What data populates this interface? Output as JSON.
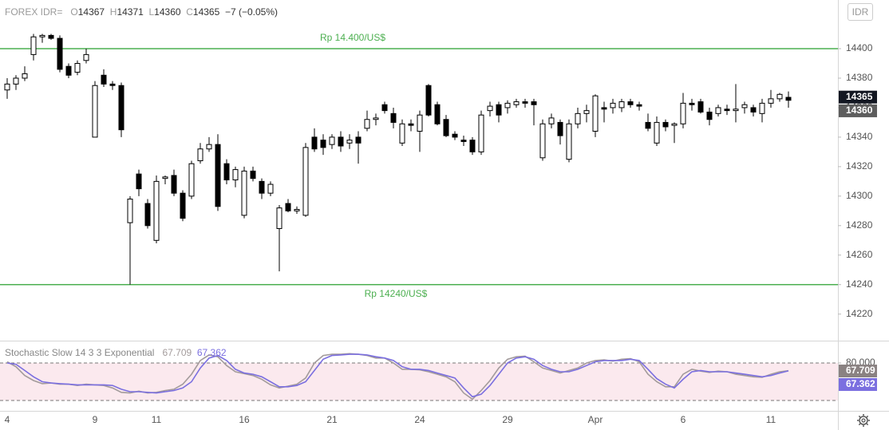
{
  "toolbar": {
    "currency": "IDR"
  },
  "chart_data": [
    {
      "type": "candlestick",
      "title": "FOREX IDR=",
      "ohlc_legend": [
        "O",
        "H",
        "L",
        "C"
      ],
      "change_label": "−7 (−0.05%)",
      "color": "#000000",
      "categories": [
        "4",
        null,
        null,
        null,
        null,
        null,
        null,
        null,
        null,
        null,
        "9",
        null,
        null,
        null,
        null,
        null,
        null,
        "11",
        null,
        null,
        null,
        null,
        null,
        null,
        null,
        null,
        null,
        "16",
        null,
        null,
        null,
        null,
        null,
        null,
        null,
        null,
        null,
        "21",
        null,
        null,
        null,
        null,
        null,
        null,
        null,
        null,
        null,
        "24",
        null,
        null,
        null,
        null,
        null,
        null,
        null,
        null,
        null,
        "29",
        null,
        null,
        null,
        null,
        null,
        null,
        null,
        null,
        null,
        "Apr",
        null,
        null,
        null,
        null,
        null,
        null,
        null,
        null,
        null,
        "6",
        null,
        null,
        null,
        null,
        null,
        null,
        null,
        null,
        null,
        "11",
        null,
        null
      ],
      "ohlc": [
        [
          14372,
          14380,
          14366,
          14376
        ],
        [
          14376,
          14382,
          14372,
          14380
        ],
        [
          14380,
          14388,
          14378,
          14383
        ],
        [
          14396,
          14410,
          14392,
          14408
        ],
        [
          14408,
          14410,
          14404,
          14409
        ],
        [
          14409,
          14410,
          14406,
          14407
        ],
        [
          14407,
          14409,
          14384,
          14386
        ],
        [
          14388,
          14390,
          14380,
          14382
        ],
        [
          14384,
          14392,
          14382,
          14390
        ],
        [
          14392,
          14400,
          14390,
          14396
        ],
        [
          14340,
          14378,
          14340,
          14375
        ],
        [
          14382,
          14386,
          14374,
          14376
        ],
        [
          14376,
          14378,
          14372,
          14375
        ],
        [
          14375,
          14377,
          14340,
          14345
        ],
        [
          14282,
          14300,
          14240,
          14298
        ],
        [
          14315,
          14318,
          14300,
          14305
        ],
        [
          14295,
          14298,
          14278,
          14280
        ],
        [
          14270,
          14314,
          14268,
          14310
        ],
        [
          14312,
          14314,
          14308,
          14313
        ],
        [
          14314,
          14318,
          14300,
          14302
        ],
        [
          14302,
          14304,
          14283,
          14285
        ],
        [
          14300,
          14324,
          14298,
          14322
        ],
        [
          14324,
          14336,
          14322,
          14332
        ],
        [
          14332,
          14340,
          14330,
          14335
        ],
        [
          14335,
          14342,
          14290,
          14293
        ],
        [
          14322,
          14325,
          14308,
          14311
        ],
        [
          14311,
          14320,
          14306,
          14318
        ],
        [
          14287,
          14320,
          14285,
          14317
        ],
        [
          14317,
          14320,
          14310,
          14312
        ],
        [
          14310,
          14312,
          14298,
          14302
        ],
        [
          14302,
          14310,
          14300,
          14308
        ],
        [
          14278,
          14294,
          14249,
          14292
        ],
        [
          14295,
          14298,
          14289,
          14290
        ],
        [
          14290,
          14293,
          14288,
          14291
        ],
        [
          14287,
          14336,
          14286,
          14333
        ],
        [
          14340,
          14346,
          14330,
          14332
        ],
        [
          14338,
          14342,
          14328,
          14333
        ],
        [
          14335,
          14342,
          14332,
          14340
        ],
        [
          14340,
          14344,
          14330,
          14334
        ],
        [
          14336,
          14342,
          14332,
          14338
        ],
        [
          14340,
          14344,
          14322,
          14336
        ],
        [
          14346,
          14358,
          14344,
          14352
        ],
        [
          14352,
          14356,
          14348,
          14353
        ],
        [
          14362,
          14364,
          14356,
          14358
        ],
        [
          14356,
          14360,
          14346,
          14350
        ],
        [
          14336,
          14352,
          14334,
          14349
        ],
        [
          14349,
          14352,
          14344,
          14348
        ],
        [
          14344,
          14358,
          14330,
          14355
        ],
        [
          14375,
          14376,
          14354,
          14355
        ],
        [
          14362,
          14364,
          14348,
          14349
        ],
        [
          14352,
          14355,
          14340,
          14341
        ],
        [
          14342,
          14344,
          14338,
          14340
        ],
        [
          14338,
          14341,
          14334,
          14337
        ],
        [
          14338,
          14340,
          14328,
          14330
        ],
        [
          14330,
          14358,
          14328,
          14355
        ],
        [
          14358,
          14364,
          14354,
          14361
        ],
        [
          14362,
          14364,
          14350,
          14355
        ],
        [
          14360,
          14365,
          14356,
          14363
        ],
        [
          14362,
          14366,
          14360,
          14364
        ],
        [
          14364,
          14366,
          14360,
          14363
        ],
        [
          14364,
          14366,
          14348,
          14362
        ],
        [
          14326,
          14352,
          14324,
          14349
        ],
        [
          14349,
          14356,
          14346,
          14353
        ],
        [
          14350,
          14352,
          14335,
          14341
        ],
        [
          14325,
          14352,
          14323,
          14349
        ],
        [
          14349,
          14360,
          14346,
          14356
        ],
        [
          14356,
          14362,
          14350,
          14358
        ],
        [
          14344,
          14369,
          14340,
          14368
        ],
        [
          14360,
          14364,
          14350,
          14359
        ],
        [
          14360,
          14366,
          14356,
          14363
        ],
        [
          14360,
          14366,
          14357,
          14364
        ],
        [
          14364,
          14366,
          14360,
          14362
        ],
        [
          14362,
          14364,
          14358,
          14361
        ],
        [
          14350,
          14356,
          14344,
          14346
        ],
        [
          14336,
          14354,
          14334,
          14350
        ],
        [
          14350,
          14352,
          14344,
          14347
        ],
        [
          14348,
          14350,
          14336,
          14349
        ],
        [
          14349,
          14370,
          14346,
          14363
        ],
        [
          14363,
          14366,
          14358,
          14362
        ],
        [
          14364,
          14366,
          14356,
          14357
        ],
        [
          14357,
          14360,
          14348,
          14352
        ],
        [
          14356,
          14362,
          14354,
          14360
        ],
        [
          14359,
          14362,
          14355,
          14358
        ],
        [
          14358,
          14376,
          14350,
          14359
        ],
        [
          14360,
          14364,
          14356,
          14362
        ],
        [
          14360,
          14362,
          14354,
          14357
        ],
        [
          14356,
          14366,
          14350,
          14363
        ],
        [
          14363,
          14372,
          14360,
          14366
        ],
        [
          14366,
          14370,
          14364,
          14369
        ],
        [
          14367,
          14371,
          14360,
          14365
        ]
      ],
      "ylim": [
        14202,
        14433
      ],
      "yticks": [
        14220,
        14240,
        14260,
        14280,
        14300,
        14320,
        14340,
        14360,
        14380,
        14400
      ],
      "hlines": [
        {
          "value": 14400,
          "label": "Rp 14.400/US$"
        },
        {
          "value": 14240,
          "label": "Rp 14240/US$"
        }
      ],
      "hline_color": "#4caf50"
    },
    {
      "type": "line",
      "title": "Stochastic Slow 14 3 3 Exponential",
      "series": [
        {
          "color": "#a39b9b",
          "values": [
            82,
            74,
            60,
            52,
            47,
            48,
            46,
            46,
            44,
            46,
            45,
            44,
            40,
            33,
            32,
            35,
            32,
            33,
            36,
            38,
            46,
            62,
            84,
            93,
            90,
            76,
            66,
            63,
            60,
            54,
            45,
            40,
            43,
            46,
            56,
            80,
            92,
            94,
            94,
            95,
            94,
            92,
            88,
            88,
            80,
            70,
            70,
            69,
            66,
            62,
            58,
            50,
            32,
            22,
            36,
            52,
            72,
            86,
            90,
            91,
            82,
            72,
            68,
            64,
            68,
            72,
            80,
            84,
            85,
            83,
            86,
            87,
            82,
            62,
            50,
            42,
            42,
            62,
            70,
            67,
            65,
            67,
            66,
            62,
            60,
            58,
            57,
            62,
            66,
            67.709
          ]
        },
        {
          "color": "#7b6fe0",
          "values": [
            80,
            78,
            68,
            58,
            50,
            48,
            47,
            46,
            45,
            45,
            45,
            45,
            44,
            38,
            34,
            34,
            33,
            32,
            34,
            36,
            40,
            50,
            72,
            88,
            92,
            84,
            70,
            64,
            62,
            58,
            50,
            42,
            42,
            44,
            50,
            68,
            86,
            92,
            93,
            94,
            94,
            93,
            90,
            88,
            84,
            74,
            70,
            70,
            68,
            64,
            60,
            56,
            40,
            26,
            30,
            44,
            62,
            80,
            88,
            90,
            86,
            76,
            70,
            66,
            66,
            70,
            76,
            82,
            84,
            84,
            84,
            86,
            84,
            70,
            55,
            46,
            40,
            54,
            66,
            68,
            66,
            66,
            66,
            64,
            62,
            60,
            58,
            60,
            64,
            67.362
          ]
        }
      ],
      "ylim": [
        3.4,
        115.8
      ],
      "yticks": [
        {
          "value": 80,
          "label": "80.000"
        }
      ],
      "bands": [
        20,
        80
      ],
      "band_color": "#fbe9ee"
    }
  ]
}
